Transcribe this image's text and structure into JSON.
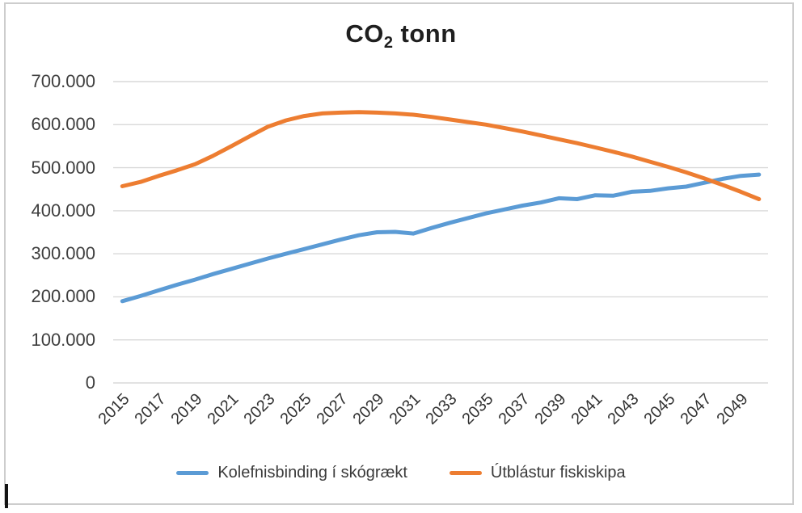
{
  "header": {
    "title_prefix": "CO",
    "title_sub": "2",
    "title_suffix": " tonn"
  },
  "chart_data": {
    "type": "line",
    "title": "CO₂ tonn",
    "xlabel": "",
    "ylabel": "",
    "x": [
      2015,
      2016,
      2017,
      2018,
      2019,
      2020,
      2021,
      2022,
      2023,
      2024,
      2025,
      2026,
      2027,
      2028,
      2029,
      2030,
      2031,
      2032,
      2033,
      2034,
      2035,
      2036,
      2037,
      2038,
      2039,
      2040,
      2041,
      2042,
      2043,
      2044,
      2045,
      2046,
      2047,
      2048,
      2049,
      2050
    ],
    "series": [
      {
        "name": "Kolefnisbinding í skógrækt",
        "color": "#5B9BD5",
        "values": [
          190000,
          202000,
          215000,
          228000,
          240000,
          253000,
          265000,
          277000,
          289000,
          300000,
          311000,
          322000,
          333000,
          343000,
          350000,
          351000,
          347000,
          360000,
          372000,
          383000,
          394000,
          403000,
          412000,
          419000,
          429000,
          427000,
          436000,
          435000,
          444000,
          446000,
          452000,
          456000,
          465000,
          474000,
          481000,
          484000
        ]
      },
      {
        "name": "Útblástur fiskiskipa",
        "color": "#ED7D31",
        "values": [
          457000,
          467000,
          481000,
          494000,
          508000,
          528000,
          550000,
          573000,
          595000,
          610000,
          620000,
          626000,
          628000,
          629000,
          628000,
          626000,
          623000,
          618000,
          612000,
          606000,
          600000,
          592000,
          584000,
          575000,
          566000,
          557000,
          547000,
          537000,
          526000,
          514000,
          502000,
          489000,
          475000,
          460000,
          444000,
          427000
        ]
      }
    ],
    "ylim": [
      0,
      700000
    ],
    "ytick_step": 100000,
    "ytick_labels": [
      "0",
      "100.000",
      "200.000",
      "300.000",
      "400.000",
      "500.000",
      "600.000",
      "700.000"
    ],
    "xtick_labels": [
      "2015",
      "2017",
      "2019",
      "2021",
      "2023",
      "2025",
      "2027",
      "2029",
      "2031",
      "2033",
      "2035",
      "2037",
      "2039",
      "2041",
      "2043",
      "2045",
      "2047",
      "2049"
    ],
    "grid": "horizontal",
    "legend_position": "bottom"
  },
  "colors": {
    "grid": "#D9D9D9",
    "axis_text": "#3E3E3E",
    "title_text": "#1F1F1F",
    "frame_border": "#CDCDCD",
    "edge_marker": "#141414",
    "series_blue": "#5B9BD5",
    "series_orange": "#ED7D31"
  }
}
